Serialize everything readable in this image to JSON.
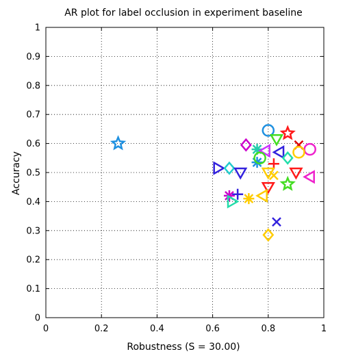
{
  "chart_data": {
    "type": "scatter",
    "title": "AR plot for label occlusion in experiment baseline",
    "xlabel": "Robustness (S = 30.00)",
    "ylabel": "Accuracy",
    "xlim": [
      0,
      1
    ],
    "ylim": [
      0,
      1
    ],
    "grid": true,
    "grid_style": "dotted",
    "x_ticks": [
      "0",
      "0.2",
      "0.4",
      "0.6",
      "0.8",
      "1"
    ],
    "y_ticks": [
      "0",
      "0.1",
      "0.2",
      "0.3",
      "0.4",
      "0.5",
      "0.6",
      "0.7",
      "0.8",
      "0.9",
      "1"
    ],
    "points": [
      {
        "x": 0.26,
        "y": 0.6,
        "marker": "star",
        "color": "#1e90e0"
      },
      {
        "x": 0.8,
        "y": 0.645,
        "marker": "circle",
        "color": "#1e90e0"
      },
      {
        "x": 0.87,
        "y": 0.635,
        "marker": "star",
        "color": "#ff1a1a"
      },
      {
        "x": 0.91,
        "y": 0.595,
        "marker": "x",
        "color": "#dd0000"
      },
      {
        "x": 0.95,
        "y": 0.58,
        "marker": "circle",
        "color": "#ee22cc"
      },
      {
        "x": 0.91,
        "y": 0.57,
        "marker": "circle",
        "color": "#ffcc00"
      },
      {
        "x": 0.72,
        "y": 0.595,
        "marker": "diamond",
        "color": "#cc00cc"
      },
      {
        "x": 0.83,
        "y": 0.615,
        "marker": "triangle-down",
        "color": "#44dd22"
      },
      {
        "x": 0.76,
        "y": 0.58,
        "marker": "asterisk",
        "color": "#22ccaa"
      },
      {
        "x": 0.79,
        "y": 0.575,
        "marker": "triangle-left",
        "color": "#cc33ff"
      },
      {
        "x": 0.84,
        "y": 0.57,
        "marker": "triangle-left",
        "color": "#3322dd"
      },
      {
        "x": 0.87,
        "y": 0.55,
        "marker": "diamond",
        "color": "#22ddaa"
      },
      {
        "x": 0.76,
        "y": 0.535,
        "marker": "asterisk",
        "color": "#1e90e0"
      },
      {
        "x": 0.77,
        "y": 0.55,
        "marker": "circle",
        "color": "#44dd22"
      },
      {
        "x": 0.82,
        "y": 0.53,
        "marker": "plus",
        "color": "#ff1a1a"
      },
      {
        "x": 0.62,
        "y": 0.515,
        "marker": "triangle-right",
        "color": "#3322dd"
      },
      {
        "x": 0.66,
        "y": 0.515,
        "marker": "diamond",
        "color": "#22cccc"
      },
      {
        "x": 0.7,
        "y": 0.5,
        "marker": "triangle-down",
        "color": "#3322dd"
      },
      {
        "x": 0.8,
        "y": 0.5,
        "marker": "triangle-down",
        "color": "#ffcc00"
      },
      {
        "x": 0.82,
        "y": 0.49,
        "marker": "x",
        "color": "#ffcc00"
      },
      {
        "x": 0.9,
        "y": 0.5,
        "marker": "triangle-down",
        "color": "#ff1a1a"
      },
      {
        "x": 0.95,
        "y": 0.485,
        "marker": "triangle-left",
        "color": "#ee22cc"
      },
      {
        "x": 0.87,
        "y": 0.46,
        "marker": "star",
        "color": "#44dd22"
      },
      {
        "x": 0.8,
        "y": 0.45,
        "marker": "triangle-down",
        "color": "#ff1a1a"
      },
      {
        "x": 0.78,
        "y": 0.42,
        "marker": "triangle-left",
        "color": "#ffcc00"
      },
      {
        "x": 0.66,
        "y": 0.42,
        "marker": "asterisk",
        "color": "#cc00cc"
      },
      {
        "x": 0.69,
        "y": 0.425,
        "marker": "plus",
        "color": "#3322dd"
      },
      {
        "x": 0.67,
        "y": 0.4,
        "marker": "triangle-right",
        "color": "#22ddaa"
      },
      {
        "x": 0.73,
        "y": 0.41,
        "marker": "asterisk",
        "color": "#ffcc00"
      },
      {
        "x": 0.83,
        "y": 0.33,
        "marker": "x",
        "color": "#3322dd"
      },
      {
        "x": 0.8,
        "y": 0.285,
        "marker": "diamond",
        "color": "#ffcc00"
      }
    ]
  }
}
